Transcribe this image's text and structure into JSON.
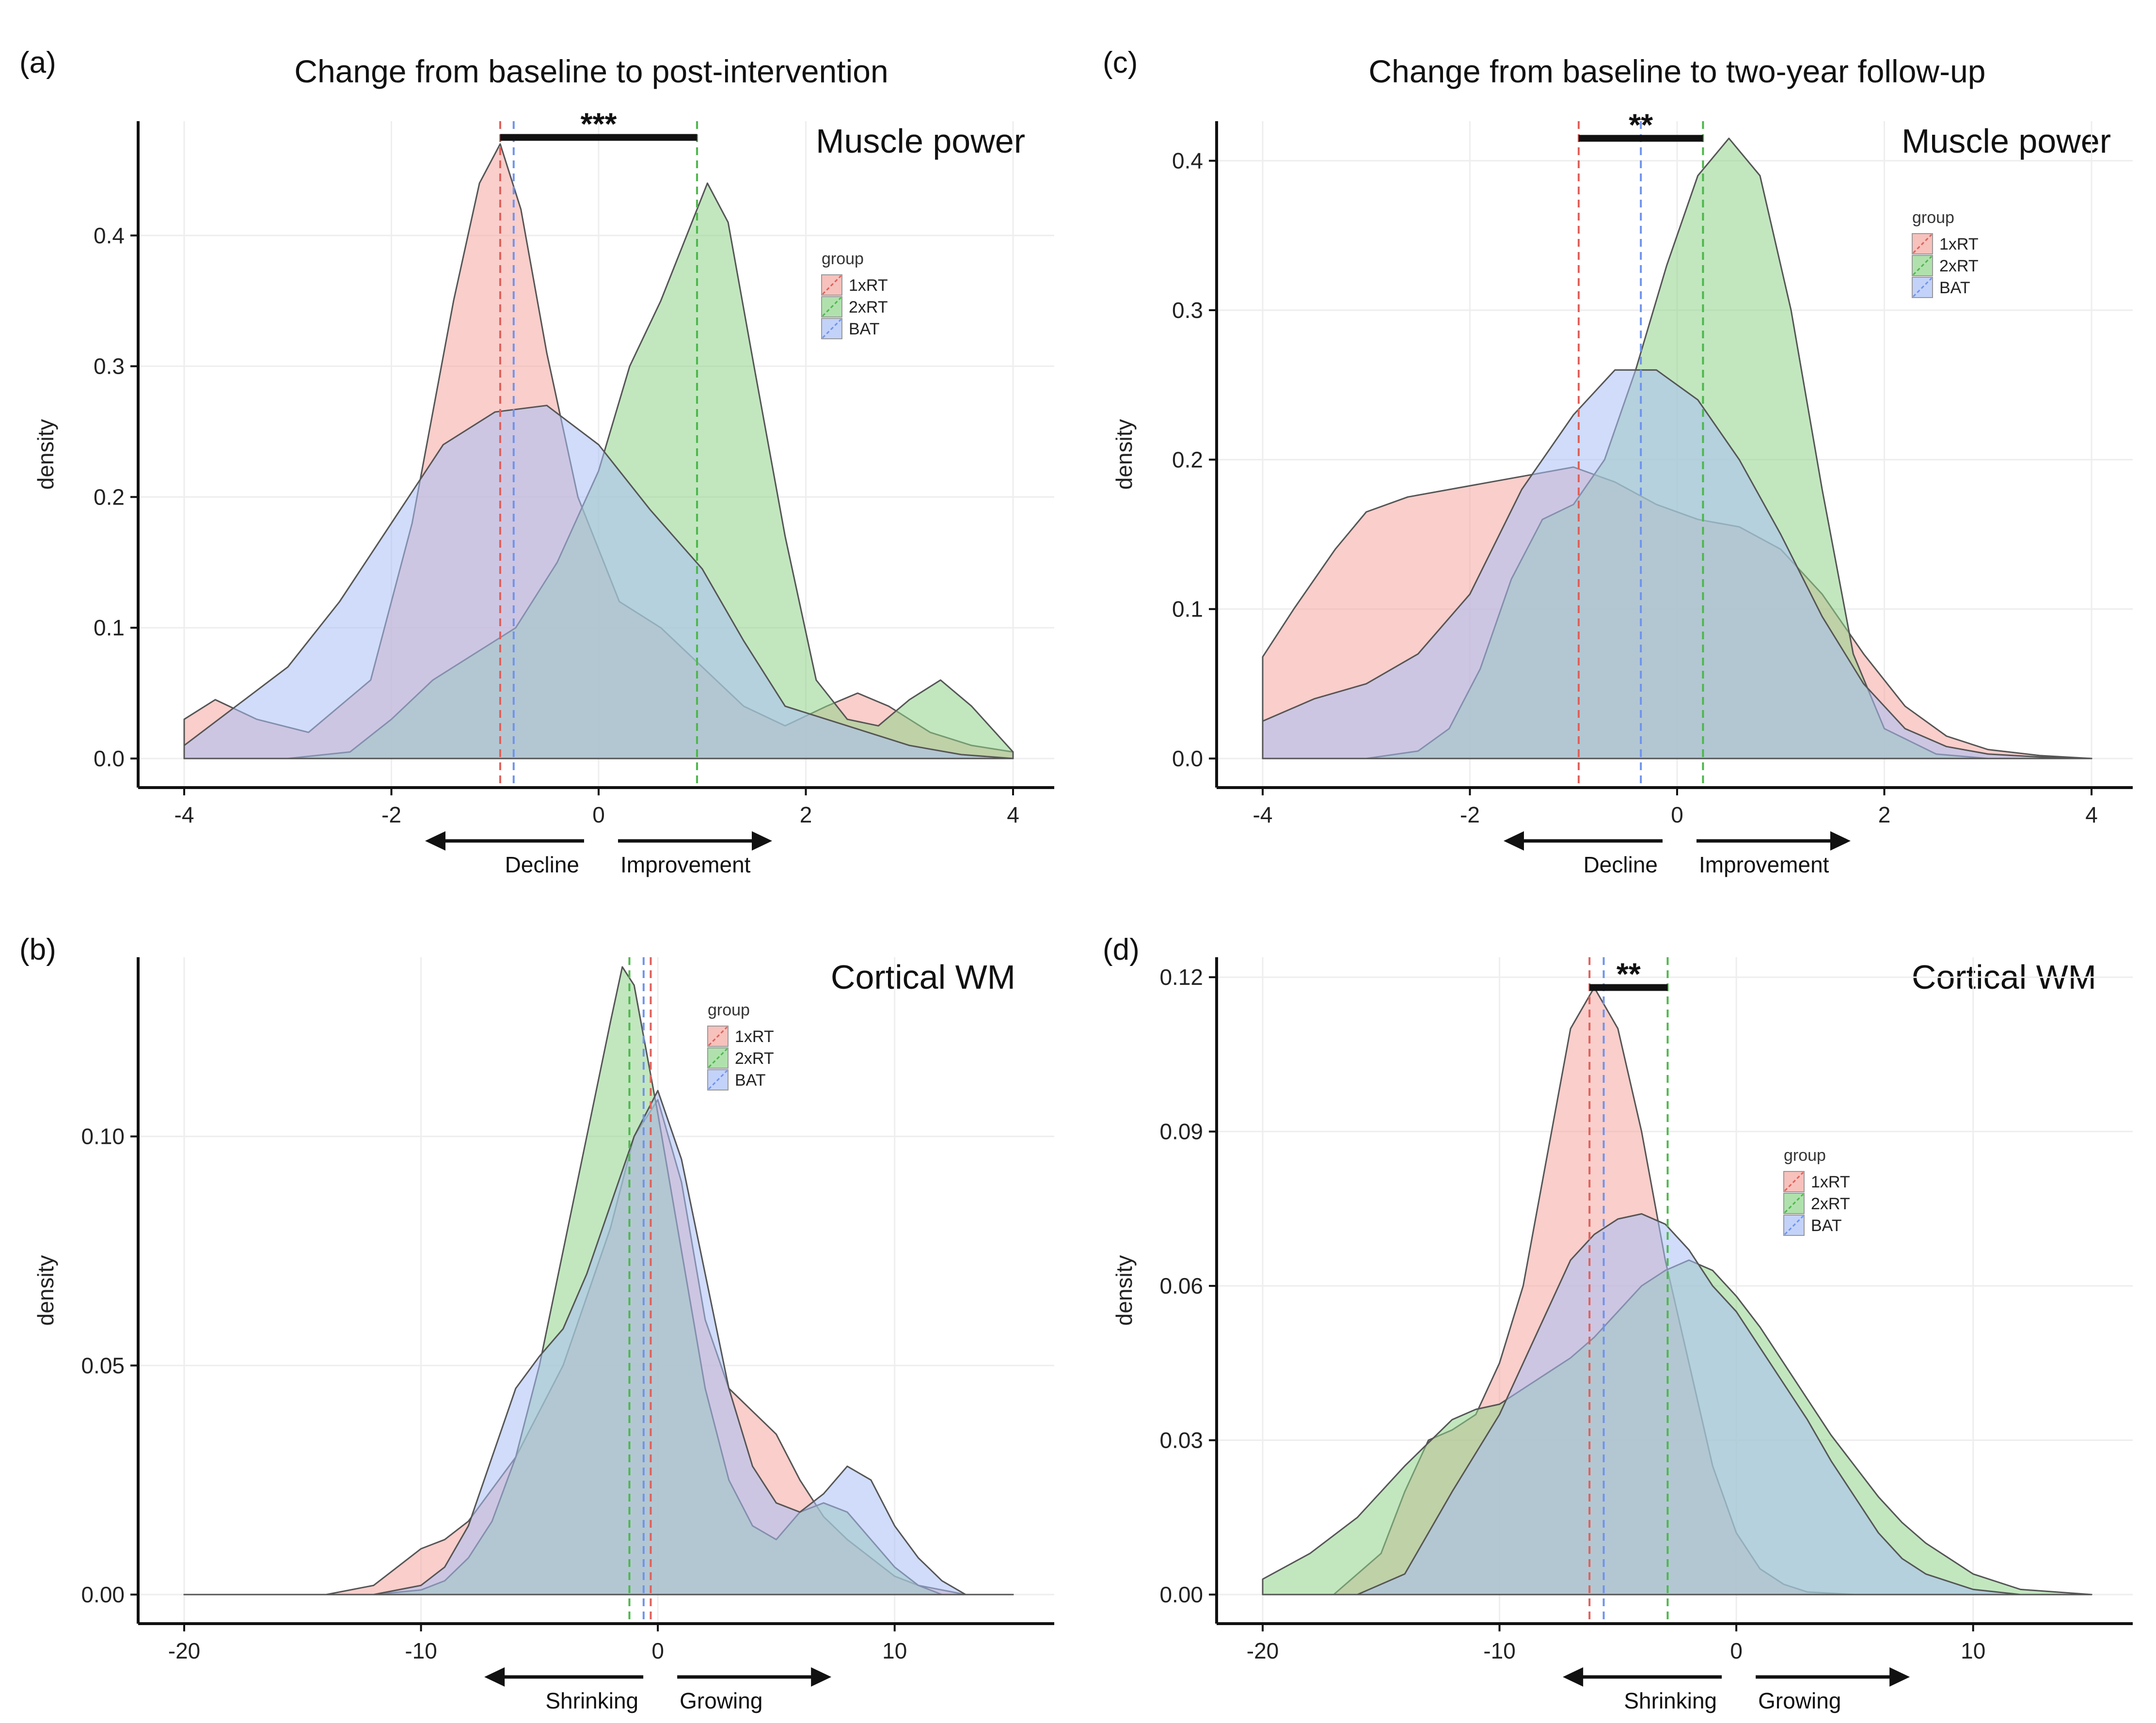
{
  "column_titles": {
    "left": "Change from baseline to post-intervention",
    "right": "Change from baseline to two-year follow-up"
  },
  "colors": {
    "1xRT": "#f4a6a0",
    "2xRT": "#8fd48a",
    "BAT": "#a9bff5",
    "1xRT_line": "#e0605a",
    "2xRT_line": "#4cb84a",
    "BAT_line": "#6f93ee",
    "outline": "#555555"
  },
  "chart_data": [
    {
      "id": "a",
      "panel_label": "(a)",
      "type": "area",
      "title": "Muscle power",
      "xlabel": "",
      "ylabel": "density",
      "xlim": [
        -4,
        4
      ],
      "ylim": [
        0,
        0.48
      ],
      "xticks": [
        -4,
        -2,
        0,
        2,
        4
      ],
      "xtick_labels": [
        "-4",
        "-2",
        "0",
        "2",
        "4"
      ],
      "yticks": [
        0,
        0.1,
        0.2,
        0.3,
        0.4
      ],
      "ytick_labels": [
        "0.0",
        "0.1",
        "0.2",
        "0.3",
        "0.4"
      ],
      "legend": {
        "title": "group",
        "entries": [
          "1xRT",
          "2xRT",
          "BAT"
        ],
        "position": "upper-middle-right"
      },
      "series": [
        {
          "name": "1xRT",
          "x": [
            -4,
            -3.7,
            -3.3,
            -2.8,
            -2.2,
            -1.8,
            -1.4,
            -1.15,
            -0.95,
            -0.75,
            -0.5,
            -0.2,
            0.2,
            0.6,
            1.0,
            1.4,
            1.8,
            2.2,
            2.5,
            2.8,
            3.2,
            3.6,
            4
          ],
          "y": [
            0.03,
            0.045,
            0.03,
            0.02,
            0.06,
            0.18,
            0.35,
            0.44,
            0.47,
            0.42,
            0.31,
            0.2,
            0.12,
            0.1,
            0.07,
            0.04,
            0.025,
            0.04,
            0.05,
            0.04,
            0.02,
            0.01,
            0.005
          ]
        },
        {
          "name": "2xRT",
          "x": [
            -4,
            -3,
            -2.4,
            -2.0,
            -1.6,
            -1.2,
            -0.8,
            -0.4,
            0.0,
            0.3,
            0.6,
            0.85,
            1.05,
            1.25,
            1.5,
            1.8,
            2.1,
            2.4,
            2.7,
            3.0,
            3.3,
            3.6,
            4
          ],
          "y": [
            0.0,
            0.0,
            0.005,
            0.03,
            0.06,
            0.08,
            0.1,
            0.15,
            0.22,
            0.3,
            0.35,
            0.4,
            0.44,
            0.41,
            0.3,
            0.17,
            0.06,
            0.03,
            0.025,
            0.045,
            0.06,
            0.04,
            0.005
          ]
        },
        {
          "name": "BAT",
          "x": [
            -4,
            -3.5,
            -3.0,
            -2.5,
            -2.0,
            -1.5,
            -1.0,
            -0.5,
            0.0,
            0.5,
            1.0,
            1.4,
            1.8,
            2.2,
            2.6,
            3.0,
            3.5,
            4
          ],
          "y": [
            0.01,
            0.04,
            0.07,
            0.12,
            0.18,
            0.24,
            0.265,
            0.27,
            0.24,
            0.19,
            0.145,
            0.09,
            0.04,
            0.03,
            0.02,
            0.01,
            0.003,
            0.0
          ]
        }
      ],
      "means": {
        "1xRT": -0.95,
        "2xRT": 0.95,
        "BAT": -0.82
      },
      "significance": {
        "label": "***",
        "from": -0.95,
        "to": 0.95,
        "y": 0.475
      },
      "direction_labels": {
        "negative": "Decline",
        "positive": "Improvement"
      }
    },
    {
      "id": "b",
      "panel_label": "(b)",
      "type": "area",
      "title": "Cortical WM",
      "xlabel": "",
      "ylabel": "density",
      "xlim": [
        -20,
        15
      ],
      "ylim": [
        0,
        0.137
      ],
      "xticks": [
        -20,
        -10,
        0,
        10
      ],
      "xtick_labels": [
        "-20",
        "-10",
        "0",
        "10"
      ],
      "yticks": [
        0,
        0.05,
        0.1
      ],
      "ytick_labels": [
        "0.00",
        "0.05",
        "0.10"
      ],
      "legend": {
        "title": "group",
        "entries": [
          "1xRT",
          "2xRT",
          "BAT"
        ],
        "position": "upper-middle-right"
      },
      "series": [
        {
          "name": "1xRT",
          "x": [
            -20,
            -14,
            -12,
            -11,
            -10,
            -9,
            -8,
            -6,
            -4,
            -2,
            -1,
            0,
            1,
            2,
            3,
            4,
            5,
            6,
            7,
            8,
            9,
            10,
            11,
            13,
            15
          ],
          "y": [
            0,
            0,
            0.002,
            0.006,
            0.01,
            0.012,
            0.016,
            0.03,
            0.05,
            0.08,
            0.1,
            0.108,
            0.09,
            0.06,
            0.045,
            0.04,
            0.035,
            0.025,
            0.017,
            0.012,
            0.008,
            0.004,
            0.002,
            0,
            0
          ]
        },
        {
          "name": "2xRT",
          "x": [
            -20,
            -12,
            -10,
            -9,
            -8,
            -7,
            -6,
            -5,
            -4,
            -3,
            -2,
            -1.5,
            -1,
            0,
            1,
            2,
            3,
            4,
            5,
            6,
            7,
            8,
            9,
            10,
            11,
            12,
            15
          ],
          "y": [
            0,
            0,
            0.001,
            0.003,
            0.008,
            0.016,
            0.03,
            0.05,
            0.075,
            0.1,
            0.125,
            0.137,
            0.133,
            0.105,
            0.075,
            0.045,
            0.025,
            0.015,
            0.012,
            0.018,
            0.02,
            0.018,
            0.012,
            0.006,
            0.002,
            0,
            0
          ]
        },
        {
          "name": "BAT",
          "x": [
            -20,
            -12,
            -10,
            -9,
            -8,
            -7,
            -6,
            -5,
            -4,
            -3,
            -2,
            -1,
            0,
            1,
            2,
            3,
            4,
            5,
            6,
            7,
            8,
            9,
            10,
            11,
            12,
            13,
            15
          ],
          "y": [
            0,
            0,
            0.002,
            0.006,
            0.015,
            0.03,
            0.045,
            0.052,
            0.058,
            0.07,
            0.085,
            0.1,
            0.11,
            0.095,
            0.07,
            0.045,
            0.028,
            0.02,
            0.018,
            0.022,
            0.028,
            0.025,
            0.015,
            0.008,
            0.003,
            0,
            0
          ]
        }
      ],
      "means": {
        "1xRT": -0.3,
        "2xRT": -1.2,
        "BAT": -0.6
      },
      "significance": null,
      "direction_labels": {
        "negative": "Shrinking",
        "positive": "Growing"
      }
    },
    {
      "id": "c",
      "panel_label": "(c)",
      "type": "area",
      "title": "Muscle power",
      "xlabel": "",
      "ylabel": "density",
      "xlim": [
        -4,
        4
      ],
      "ylim": [
        0,
        0.42
      ],
      "xticks": [
        -4,
        -2,
        0,
        2,
        4
      ],
      "xtick_labels": [
        "-4",
        "-2",
        "0",
        "2",
        "4"
      ],
      "yticks": [
        0,
        0.1,
        0.2,
        0.3,
        0.4
      ],
      "ytick_labels": [
        "0.0",
        "0.1",
        "0.2",
        "0.3",
        "0.4"
      ],
      "legend": {
        "title": "group",
        "entries": [
          "1xRT",
          "2xRT",
          "BAT"
        ],
        "position": "upper-right"
      },
      "series": [
        {
          "name": "1xRT",
          "x": [
            -4,
            -3.7,
            -3.3,
            -3.0,
            -2.6,
            -2.2,
            -1.8,
            -1.4,
            -1.0,
            -0.6,
            -0.2,
            0.2,
            0.6,
            1.0,
            1.4,
            1.8,
            2.2,
            2.6,
            3.0,
            3.5,
            4
          ],
          "y": [
            0.068,
            0.1,
            0.14,
            0.165,
            0.175,
            0.18,
            0.185,
            0.19,
            0.195,
            0.185,
            0.17,
            0.16,
            0.155,
            0.14,
            0.11,
            0.07,
            0.035,
            0.015,
            0.006,
            0.002,
            0.0
          ]
        },
        {
          "name": "2xRT",
          "x": [
            -4,
            -3,
            -2.5,
            -2.2,
            -1.9,
            -1.6,
            -1.3,
            -1.0,
            -0.7,
            -0.4,
            -0.1,
            0.2,
            0.5,
            0.8,
            1.1,
            1.4,
            1.7,
            2.0,
            2.5,
            3,
            4
          ],
          "y": [
            0,
            0,
            0.005,
            0.02,
            0.06,
            0.12,
            0.16,
            0.17,
            0.2,
            0.26,
            0.33,
            0.39,
            0.415,
            0.39,
            0.3,
            0.18,
            0.07,
            0.02,
            0.003,
            0,
            0
          ]
        },
        {
          "name": "BAT",
          "x": [
            -4,
            -3.5,
            -3.0,
            -2.5,
            -2.0,
            -1.5,
            -1.0,
            -0.6,
            -0.2,
            0.2,
            0.6,
            1.0,
            1.4,
            1.8,
            2.2,
            2.6,
            3.0,
            3.5,
            4
          ],
          "y": [
            0.025,
            0.04,
            0.05,
            0.07,
            0.11,
            0.18,
            0.23,
            0.26,
            0.26,
            0.24,
            0.2,
            0.15,
            0.095,
            0.05,
            0.02,
            0.008,
            0.003,
            0.001,
            0.0
          ]
        }
      ],
      "means": {
        "1xRT": -0.95,
        "2xRT": 0.25,
        "BAT": -0.35
      },
      "significance": {
        "label": "**",
        "from": -0.95,
        "to": 0.25,
        "y": 0.415
      },
      "direction_labels": {
        "negative": "Decline",
        "positive": "Improvement"
      }
    },
    {
      "id": "d",
      "panel_label": "(d)",
      "type": "area",
      "title": "Cortical WM",
      "xlabel": "",
      "ylabel": "density",
      "xlim": [
        -20,
        15
      ],
      "ylim": [
        0,
        0.122
      ],
      "xticks": [
        -20,
        -10,
        0,
        10
      ],
      "xtick_labels": [
        "-20",
        "-10",
        "0",
        "10"
      ],
      "yticks": [
        0,
        0.03,
        0.06,
        0.09,
        0.12
      ],
      "ytick_labels": [
        "0.00",
        "0.03",
        "0.06",
        "0.09",
        "0.12"
      ],
      "legend": {
        "title": "group",
        "entries": [
          "1xRT",
          "2xRT",
          "BAT"
        ],
        "position": "right"
      },
      "series": [
        {
          "name": "1xRT",
          "x": [
            -20,
            -17,
            -15,
            -14,
            -13,
            -12,
            -11,
            -10,
            -9,
            -8,
            -7,
            -6,
            -5,
            -4,
            -3,
            -2,
            -1,
            0,
            1,
            2,
            3,
            5,
            7,
            10,
            15
          ],
          "y": [
            0,
            0,
            0.008,
            0.02,
            0.03,
            0.032,
            0.035,
            0.045,
            0.06,
            0.085,
            0.11,
            0.118,
            0.11,
            0.09,
            0.065,
            0.045,
            0.025,
            0.012,
            0.005,
            0.002,
            0.0005,
            0,
            0,
            0,
            0
          ]
        },
        {
          "name": "2xRT",
          "x": [
            -20,
            -18,
            -16,
            -14,
            -12,
            -11,
            -10,
            -9,
            -8,
            -7,
            -6,
            -5,
            -4,
            -3,
            -2,
            -1,
            0,
            1,
            2,
            3,
            4,
            5,
            6,
            7,
            8,
            10,
            12,
            15
          ],
          "y": [
            0.003,
            0.008,
            0.015,
            0.025,
            0.034,
            0.036,
            0.037,
            0.04,
            0.043,
            0.046,
            0.05,
            0.055,
            0.06,
            0.063,
            0.065,
            0.063,
            0.058,
            0.052,
            0.045,
            0.038,
            0.031,
            0.025,
            0.019,
            0.014,
            0.01,
            0.004,
            0.001,
            0
          ]
        },
        {
          "name": "BAT",
          "x": [
            -20,
            -16,
            -14,
            -12,
            -10,
            -9,
            -8,
            -7,
            -6,
            -5,
            -4,
            -3,
            -2,
            -1,
            0,
            1,
            2,
            3,
            4,
            5,
            6,
            7,
            8,
            10,
            12,
            15
          ],
          "y": [
            0,
            0,
            0.004,
            0.02,
            0.035,
            0.045,
            0.055,
            0.065,
            0.07,
            0.073,
            0.074,
            0.072,
            0.067,
            0.06,
            0.055,
            0.048,
            0.041,
            0.034,
            0.026,
            0.019,
            0.012,
            0.007,
            0.004,
            0.001,
            0,
            0
          ]
        }
      ],
      "means": {
        "1xRT": -6.2,
        "2xRT": -2.9,
        "BAT": -5.6
      },
      "significance": {
        "label": "**",
        "from": -6.2,
        "to": -2.9,
        "y": 0.118
      },
      "direction_labels": {
        "negative": "Shrinking",
        "positive": "Growing"
      }
    }
  ]
}
